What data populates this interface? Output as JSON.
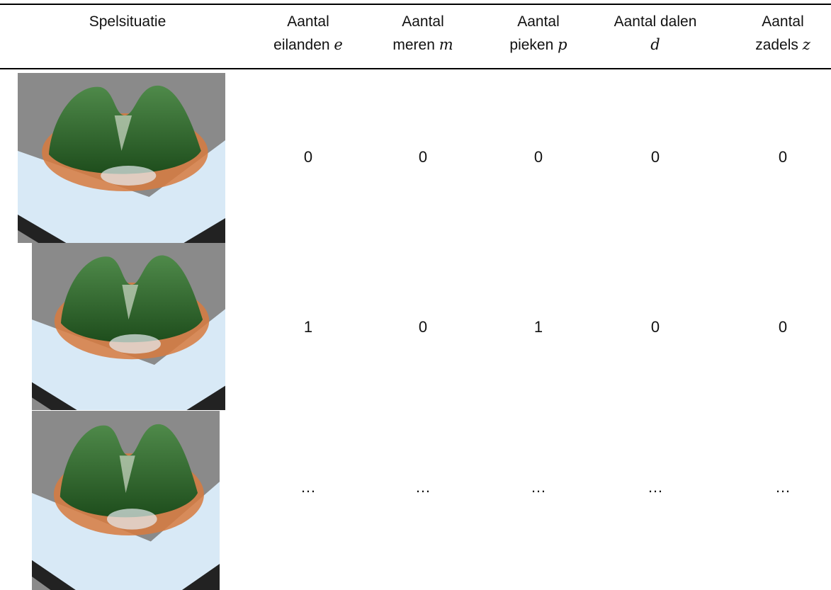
{
  "table": {
    "header": [
      {
        "text": "Spelsituatie"
      },
      {
        "line1": "Aantal",
        "line2": "eilanden",
        "symbol": "e"
      },
      {
        "line1": "Aantal",
        "line2": "meren",
        "symbol": "m"
      },
      {
        "line1": "Aantal",
        "line2": "pieken",
        "symbol": "p"
      },
      {
        "line1": "Aantal dalen",
        "symbol": "d"
      },
      {
        "line1": "Aantal",
        "line2": "zadels",
        "symbol": "z"
      }
    ],
    "rows": [
      [
        0,
        0,
        0,
        0,
        0
      ],
      [
        1,
        0,
        1,
        0,
        0
      ],
      [
        "…",
        "…",
        "…",
        "…",
        "…"
      ]
    ]
  }
}
